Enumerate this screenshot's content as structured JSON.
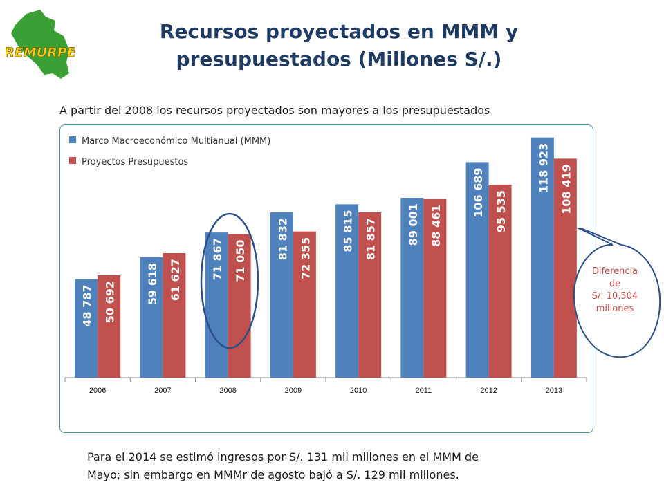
{
  "logo": {
    "text": "REMURPE",
    "map_color": "#3aa035",
    "text_color": "#f2d21a"
  },
  "header": {
    "title_line1": "Recursos proyectados en MMM y",
    "title_line2": "presupuestados (Millones S/.)",
    "subtitle": "A partir del 2008 los recursos proyectados son mayores a los presupuestados"
  },
  "footnote": {
    "line1": "Para el 2014 se estimó ingresos por S/. 131 mil millones en el MMM de",
    "line2": "Mayo; sin embargo en MMMr de agosto bajó a S/. 129 mil millones."
  },
  "callout": {
    "line1": "Diferencia",
    "line2": "de",
    "line3": "S/. 10,504",
    "line4": "millones"
  },
  "chart_data": {
    "type": "bar",
    "categories": [
      "2006",
      "2007",
      "2008",
      "2009",
      "2010",
      "2011",
      "2012",
      "2013"
    ],
    "series": [
      {
        "name": "Marco Macroeconómico Multianual (MMM)",
        "color": "#4f81bd",
        "values": [
          48787,
          59618,
          71867,
          81832,
          85815,
          89001,
          106689,
          118923
        ],
        "labels": [
          "48 787",
          "59 618",
          "71 867",
          "81 832",
          "85 815",
          "89 001",
          "106 689",
          "118 923"
        ]
      },
      {
        "name": "Proyectos Presupuestos",
        "color": "#c0504d",
        "values": [
          50692,
          61627,
          71050,
          72355,
          81857,
          88461,
          95535,
          108419
        ],
        "labels": [
          "50 692",
          "61 627",
          "71 050",
          "72 355",
          "81 857",
          "88 461",
          "95 535",
          "108 419"
        ]
      }
    ],
    "ylim": [
      0,
      125000
    ],
    "legend": "top-left",
    "grid": false,
    "highlight_category": "2008"
  }
}
